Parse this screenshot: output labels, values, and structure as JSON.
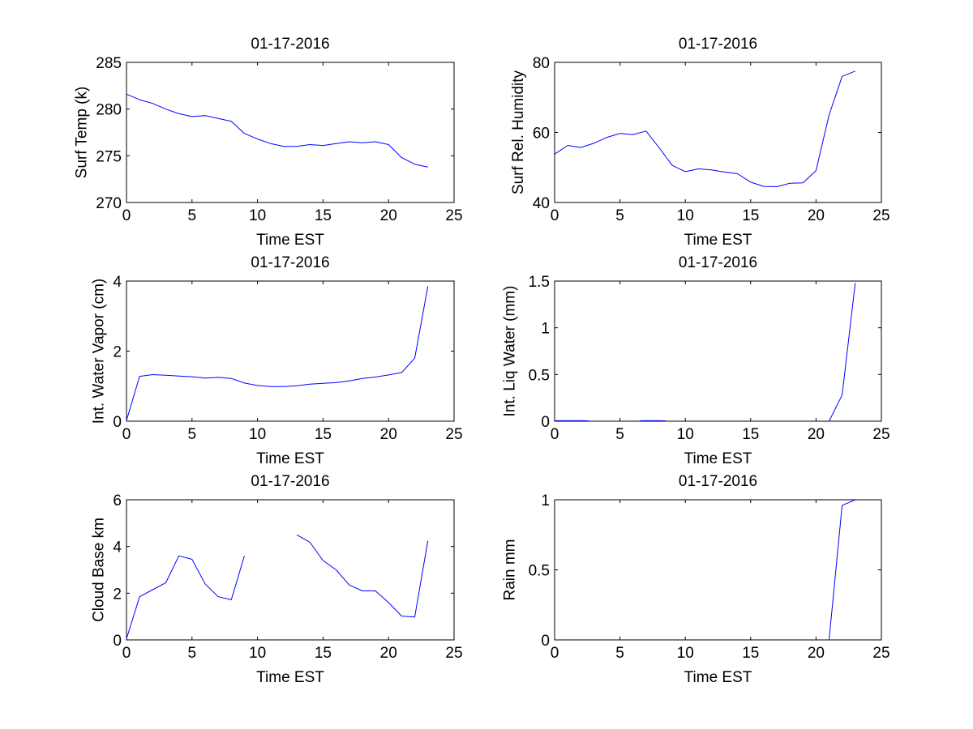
{
  "line_color": "#0000ff",
  "chart_data": [
    {
      "type": "line",
      "title": "01-17-2016",
      "xlabel": "Time EST",
      "ylabel": "Surf Temp (k)",
      "xlim": [
        0,
        25
      ],
      "ylim": [
        270,
        285
      ],
      "xticks": [
        "0",
        "5",
        "10",
        "15",
        "20",
        "25"
      ],
      "yticks": [
        "270",
        "275",
        "280",
        "285"
      ],
      "series": [
        {
          "name": "Surf Temp",
          "x": [
            0,
            1,
            2,
            3,
            4,
            5,
            6,
            7,
            8,
            9,
            10,
            11,
            12,
            13,
            14,
            15,
            16,
            17,
            18,
            19,
            20,
            21,
            22,
            23
          ],
          "y": [
            281.6,
            281.0,
            280.6,
            280.0,
            279.5,
            279.2,
            279.3,
            279.0,
            278.7,
            277.4,
            276.8,
            276.3,
            276.0,
            276.0,
            276.2,
            276.1,
            276.3,
            276.5,
            276.4,
            276.5,
            276.2,
            274.8,
            274.1,
            273.8
          ]
        }
      ]
    },
    {
      "type": "line",
      "title": "01-17-2016",
      "xlabel": "Time EST",
      "ylabel": "Surf Rel. Humidity",
      "xlim": [
        0,
        25
      ],
      "ylim": [
        40,
        80
      ],
      "xticks": [
        "0",
        "5",
        "10",
        "15",
        "20",
        "25"
      ],
      "yticks": [
        "40",
        "60",
        "80"
      ],
      "series": [
        {
          "name": "Surf Rel. Humidity",
          "x": [
            0,
            1,
            2,
            3,
            4,
            5,
            6,
            7,
            8,
            9,
            10,
            11,
            12,
            13,
            14,
            15,
            16,
            17,
            18,
            19,
            20,
            21,
            22,
            23
          ],
          "y": [
            53.8,
            56.3,
            55.7,
            56.9,
            58.6,
            59.7,
            59.4,
            60.4,
            55.6,
            50.6,
            48.8,
            49.6,
            49.3,
            48.7,
            48.2,
            45.8,
            44.6,
            44.5,
            45.5,
            45.6,
            49.1,
            65.0,
            76.0,
            77.5
          ]
        }
      ]
    },
    {
      "type": "line",
      "title": "01-17-2016",
      "xlabel": "Time EST",
      "ylabel": "Int. Water Vapor (cm)",
      "xlim": [
        0,
        25
      ],
      "ylim": [
        0,
        4
      ],
      "xticks": [
        "0",
        "5",
        "10",
        "15",
        "20",
        "25"
      ],
      "yticks": [
        "0",
        "2",
        "4"
      ],
      "series": [
        {
          "name": "Int. Water Vapor",
          "x": [
            0,
            1,
            2,
            3,
            4,
            5,
            6,
            7,
            8,
            9,
            10,
            11,
            12,
            13,
            14,
            15,
            16,
            17,
            18,
            19,
            20,
            21,
            22,
            23
          ],
          "y": [
            0.02,
            1.28,
            1.33,
            1.31,
            1.29,
            1.27,
            1.23,
            1.25,
            1.22,
            1.09,
            1.02,
            0.99,
            0.99,
            1.01,
            1.06,
            1.08,
            1.1,
            1.15,
            1.22,
            1.26,
            1.32,
            1.39,
            1.8,
            3.85
          ]
        }
      ]
    },
    {
      "type": "line",
      "title": "01-17-2016",
      "xlabel": "Time EST",
      "ylabel": "Int. Liq Water (mm)",
      "xlim": [
        0,
        25
      ],
      "ylim": [
        0,
        1.5
      ],
      "xticks": [
        "0",
        "5",
        "10",
        "15",
        "20",
        "25"
      ],
      "yticks": [
        "0",
        "0.5",
        "1",
        "1.5"
      ],
      "series": [
        {
          "name": "Int. Liq Water segment 1",
          "x": [
            0,
            1,
            2,
            2.6
          ],
          "y": [
            0.005,
            0.005,
            0.005,
            0.004
          ]
        },
        {
          "name": "Int. Liq Water segment 2",
          "x": [
            6.5,
            7,
            8,
            8.5
          ],
          "y": [
            0.004,
            0.005,
            0.005,
            0.004
          ]
        },
        {
          "name": "Int. Liq Water segment 3",
          "x": [
            21,
            22,
            23
          ],
          "y": [
            0.0,
            0.28,
            1.48
          ]
        }
      ]
    },
    {
      "type": "line",
      "title": "01-17-2016",
      "xlabel": "Time EST",
      "ylabel": "Cloud Base km",
      "xlim": [
        0,
        25
      ],
      "ylim": [
        0,
        6
      ],
      "xticks": [
        "0",
        "5",
        "10",
        "15",
        "20",
        "25"
      ],
      "yticks": [
        "0",
        "2",
        "4",
        "6"
      ],
      "series": [
        {
          "name": "Cloud Base segment 1",
          "x": [
            0,
            1,
            2,
            3,
            4,
            5,
            6,
            7,
            8,
            9
          ],
          "y": [
            0.05,
            1.85,
            2.15,
            2.45,
            3.6,
            3.45,
            2.4,
            1.85,
            1.72,
            3.6
          ]
        },
        {
          "name": "Cloud Base segment 2",
          "x": [
            13,
            14,
            15,
            16,
            17,
            18,
            19,
            20,
            21,
            22,
            23
          ],
          "y": [
            4.5,
            4.18,
            3.4,
            3.0,
            2.35,
            2.1,
            2.1,
            1.6,
            1.02,
            0.98,
            4.25
          ]
        }
      ]
    },
    {
      "type": "line",
      "title": "01-17-2016",
      "xlabel": "Time EST",
      "ylabel": "Rain mm",
      "xlim": [
        0,
        25
      ],
      "ylim": [
        0,
        1
      ],
      "xticks": [
        "0",
        "5",
        "10",
        "15",
        "20",
        "25"
      ],
      "yticks": [
        "0",
        "0.5",
        "1"
      ],
      "series": [
        {
          "name": "Rain",
          "x": [
            21,
            22,
            23
          ],
          "y": [
            0.0,
            0.96,
            1.0
          ]
        }
      ]
    }
  ]
}
